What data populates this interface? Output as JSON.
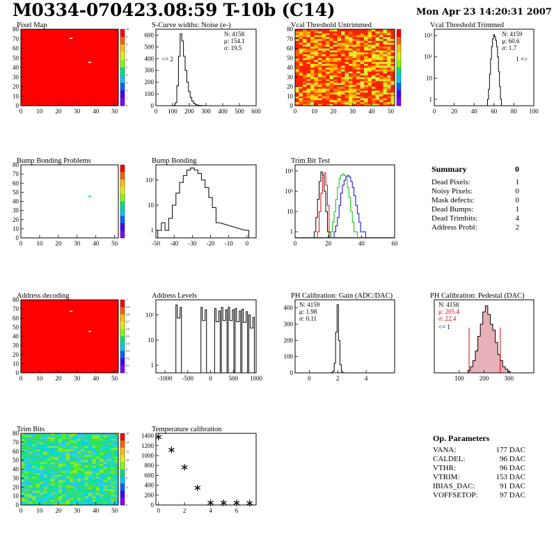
{
  "header": {
    "title": "M0334-070423.08:59 T-10b (C14)",
    "date": "Mon Apr 23 14:20:31 2007"
  },
  "summary": {
    "title": "Summary",
    "total": "0",
    "rows": [
      {
        "label": "Dead Pixels:",
        "value": "1"
      },
      {
        "label": "Noisy Pixels:",
        "value": "0"
      },
      {
        "label": "Mask defects:",
        "value": "0"
      },
      {
        "label": "Dead Bumps:",
        "value": "1"
      },
      {
        "label": "Dead Trimbits:",
        "value": "4"
      },
      {
        "label": "Address Probl:",
        "value": "2"
      }
    ]
  },
  "op_params": {
    "title": "Op. Parameters",
    "rows": [
      {
        "label": "VANA:",
        "value": "177 DAC"
      },
      {
        "label": "CALDEL:",
        "value": "96 DAC"
      },
      {
        "label": "VTHR:",
        "value": "96 DAC"
      },
      {
        "label": "VTRIM:",
        "value": "153 DAC"
      },
      {
        "label": "IBIAS_DAC:",
        "value": "91 DAC"
      },
      {
        "label": "VOFFSETOP:",
        "value": "97 DAC"
      }
    ]
  },
  "colors": {
    "red": "#ff0000",
    "frame": "#000000",
    "histogram": "#000000",
    "blue": "#0000cc",
    "green": "#00cc00",
    "pink": "#e8b0b8"
  },
  "chart_data": [
    {
      "id": "pixel_map",
      "type": "heatmap",
      "title": "Pixel Map",
      "xlim": [
        0,
        52
      ],
      "ylim": [
        0,
        80
      ],
      "xticks": [
        0,
        10,
        20,
        30,
        40,
        50
      ],
      "yticks": [
        0,
        10,
        20,
        30,
        40,
        50,
        60,
        70,
        80
      ],
      "zticks": [
        0,
        1,
        2,
        3,
        4,
        5,
        6,
        7,
        8,
        9,
        10
      ],
      "fill": "uniform",
      "hot_pixels": [
        [
          36,
          45
        ],
        [
          26,
          70
        ]
      ]
    },
    {
      "id": "noise",
      "type": "histogram",
      "title": "S-Curve widths: Noise (e-)",
      "xlim": [
        0,
        600
      ],
      "ylim": [
        0,
        650
      ],
      "xticks": [
        0,
        100,
        200,
        300,
        400,
        500,
        600
      ],
      "yticks": [
        0,
        100,
        200,
        300,
        400,
        500,
        600
      ],
      "stats": [
        "N: 4158",
        "μ: 154.1",
        "σ: 19.5"
      ],
      "annotation": "<= 2",
      "x": [
        100,
        110,
        120,
        130,
        140,
        150,
        160,
        170,
        180,
        190,
        200,
        210,
        220,
        230,
        240,
        250,
        260,
        270,
        280,
        290,
        300
      ],
      "y": [
        0,
        3,
        25,
        170,
        420,
        610,
        550,
        420,
        300,
        200,
        120,
        70,
        40,
        20,
        10,
        5,
        3,
        2,
        1,
        1,
        0
      ]
    },
    {
      "id": "vcal_untrimmed",
      "type": "heatmap",
      "title": "Vcal Threshold Untrimmed",
      "xlim": [
        0,
        52
      ],
      "ylim": [
        0,
        80
      ],
      "xticks": [
        0,
        10,
        20,
        30,
        40,
        50
      ],
      "yticks": [
        0,
        10,
        20,
        30,
        40,
        50,
        60,
        70,
        80
      ],
      "fill": "noisy_warm"
    },
    {
      "id": "vcal_trimmed",
      "type": "histogram",
      "title": "Vcal Threshold Trimmed",
      "xlim": [
        0,
        100
      ],
      "ylog": [
        0.5,
        2000
      ],
      "xticks": [
        0,
        20,
        40,
        60,
        80,
        100
      ],
      "ylogticks": [
        "1",
        "10",
        "10²",
        "10³"
      ],
      "stats": [
        "N: 4159",
        "μ: 60.6",
        "σ: 1.7"
      ],
      "annotation": "1 =>",
      "x": [
        54,
        55,
        56,
        57,
        58,
        59,
        60,
        61,
        62,
        63,
        64,
        65,
        66,
        67
      ],
      "y": [
        1,
        3,
        15,
        80,
        300,
        700,
        1100,
        900,
        600,
        300,
        100,
        20,
        4,
        1
      ]
    },
    {
      "id": "bump_map",
      "type": "heatmap",
      "title": "Bump Bonding Problems",
      "xlim": [
        0,
        52
      ],
      "ylim": [
        0,
        80
      ],
      "xticks": [
        0,
        10,
        20,
        30,
        40,
        50
      ],
      "yticks": [
        0,
        10,
        20,
        30,
        40,
        50,
        60,
        70,
        80
      ],
      "fill": "empty",
      "hot_pixels": [
        [
          36,
          45
        ]
      ]
    },
    {
      "id": "bump_bonding",
      "type": "histogram",
      "title": "Bump Bonding",
      "xlim": [
        -50,
        5
      ],
      "ylog": [
        0.5,
        400
      ],
      "xticks": [
        -50,
        -40,
        -30,
        -20,
        -10,
        0
      ],
      "ylogticks": [
        "1",
        "10",
        "10²"
      ],
      "x": [
        -48,
        -46,
        -44,
        -42,
        -40,
        -38,
        -36,
        -34,
        -32,
        -30,
        -28,
        -26,
        -24,
        -22,
        -20,
        -18,
        -16,
        0
      ],
      "y": [
        1,
        2,
        1,
        3,
        10,
        30,
        80,
        150,
        250,
        300,
        250,
        180,
        100,
        50,
        20,
        8,
        2,
        1
      ]
    },
    {
      "id": "trim_bit_test",
      "type": "histogram",
      "title": "Trim Bit Test",
      "xlim": [
        0,
        60
      ],
      "ylog": [
        0.5,
        2000
      ],
      "xticks": [
        0,
        20,
        40,
        60
      ],
      "ylogticks": [
        "1",
        "10",
        "10²",
        "10³"
      ],
      "series": [
        {
          "color": "black",
          "x": [
            12,
            13,
            14,
            15,
            16,
            17,
            18,
            19,
            20
          ],
          "y": [
            1,
            5,
            40,
            300,
            900,
            600,
            100,
            10,
            1
          ]
        },
        {
          "color": "red",
          "x": [
            14,
            15,
            16,
            17,
            18,
            19,
            20,
            21
          ],
          "y": [
            1,
            10,
            80,
            500,
            800,
            200,
            20,
            1
          ]
        },
        {
          "color": "blue",
          "x": [
            24,
            25,
            26,
            27,
            28,
            29,
            30,
            31,
            32,
            33,
            34,
            35,
            36,
            37,
            38,
            39,
            40,
            41,
            42
          ],
          "y": [
            1,
            2,
            5,
            20,
            80,
            200,
            350,
            500,
            600,
            500,
            300,
            150,
            60,
            20,
            8,
            3,
            1,
            1,
            1
          ]
        },
        {
          "color": "green",
          "x": [
            22,
            23,
            24,
            25,
            26,
            27,
            28,
            29,
            30,
            31,
            32,
            33,
            34,
            35,
            36,
            37
          ],
          "y": [
            1,
            3,
            10,
            40,
            150,
            400,
            600,
            700,
            600,
            400,
            150,
            50,
            10,
            3,
            1,
            1
          ]
        }
      ]
    },
    {
      "id": "address_decoding",
      "type": "heatmap",
      "title": "Address decoding",
      "xlim": [
        0,
        52
      ],
      "ylim": [
        0,
        80
      ],
      "xticks": [
        0,
        10,
        20,
        30,
        40,
        50
      ],
      "yticks": [
        0,
        10,
        20,
        30,
        40,
        50,
        60,
        70,
        80
      ],
      "zticks": [
        0,
        0.1,
        0.2,
        0.3,
        0.4,
        0.5,
        0.6,
        0.7,
        0.8,
        0.9,
        1
      ],
      "fill": "uniform",
      "hot_pixels": [
        [
          36,
          45
        ],
        [
          26,
          67
        ]
      ]
    },
    {
      "id": "address_levels",
      "type": "histogram",
      "title": "Address Levels",
      "xlim": [
        -1200,
        1000
      ],
      "ylog": [
        0.5,
        400
      ],
      "xticks": [
        -1000,
        -500,
        0,
        500,
        1000
      ],
      "ylogticks": [
        "1",
        "10",
        "10²"
      ],
      "peaks": [
        [
          -700,
          250
        ],
        [
          -150,
          200
        ],
        [
          150,
          180
        ],
        [
          300,
          200
        ],
        [
          450,
          200
        ],
        [
          600,
          180
        ],
        [
          750,
          170
        ],
        [
          900,
          100
        ]
      ]
    },
    {
      "id": "ph_gain",
      "type": "histogram",
      "title": "PH Calibration: Gain (ADC/DAC)",
      "xlim": [
        -1,
        6
      ],
      "ylim": [
        0,
        450
      ],
      "xticks": [
        0,
        2,
        4
      ],
      "yticks": [
        0,
        100,
        200,
        300,
        400
      ],
      "stats": [
        "N: 4159",
        "μ: 1.98",
        "σ: 0.11"
      ],
      "x": [
        1.6,
        1.7,
        1.8,
        1.9,
        2.0,
        2.1,
        2.2,
        2.3,
        2.4
      ],
      "y": [
        2,
        10,
        60,
        250,
        420,
        200,
        50,
        8,
        1
      ]
    },
    {
      "id": "ph_pedestal",
      "type": "histogram",
      "title": "PH Calibration: Pedestal (DAC)",
      "xlim": [
        0,
        400
      ],
      "ylim": [
        0,
        60
      ],
      "xticks": [
        100,
        200,
        300
      ],
      "stats": [
        "N: 4158",
        "μ: 205.4",
        "σ: 22.4"
      ],
      "annotation": "<= 1",
      "cuts": [
        140,
        265
      ],
      "x": [
        140,
        150,
        160,
        170,
        180,
        190,
        200,
        210,
        220,
        230,
        240,
        250,
        260,
        270,
        280,
        290,
        300
      ],
      "y": [
        2,
        5,
        10,
        18,
        30,
        40,
        50,
        55,
        48,
        40,
        35,
        25,
        15,
        10,
        5,
        3,
        1
      ]
    },
    {
      "id": "trim_bits",
      "type": "heatmap",
      "title": "Trim Bits",
      "xlim": [
        0,
        52
      ],
      "ylim": [
        0,
        80
      ],
      "xticks": [
        0,
        10,
        20,
        30,
        40,
        50
      ],
      "yticks": [
        0,
        10,
        20,
        30,
        40,
        50,
        60,
        70,
        80
      ],
      "zticks": [
        0,
        2,
        4,
        6,
        8,
        10,
        12,
        14,
        16
      ],
      "fill": "noisy_cool"
    },
    {
      "id": "temperature",
      "type": "scatter",
      "title": "Temperature calibration",
      "xlim": [
        -0.2,
        7.5
      ],
      "ylim": [
        0,
        1450
      ],
      "xticks": [
        0,
        2,
        4,
        6
      ],
      "yticks": [
        0,
        200,
        400,
        600,
        800,
        1000,
        1200,
        1400
      ],
      "x": [
        0,
        1,
        2,
        3,
        4,
        5,
        6,
        7
      ],
      "y": [
        1380,
        1120,
        770,
        350,
        50,
        50,
        50,
        45
      ]
    }
  ]
}
